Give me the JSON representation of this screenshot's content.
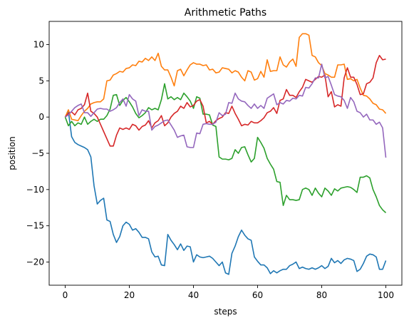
{
  "chart_data": {
    "type": "line",
    "title": "Arithmetic Paths",
    "xlabel": "steps",
    "ylabel": "position",
    "xlim": [
      -5,
      105
    ],
    "ylim": [
      -23.2,
      13.2
    ],
    "xticks": [
      0,
      20,
      40,
      60,
      80,
      100
    ],
    "yticks": [
      -20,
      -15,
      -10,
      -5,
      0,
      5,
      10
    ],
    "grid": false,
    "legend": "none",
    "series": [
      {
        "color": "#1f77b4",
        "x": [
          0,
          1,
          2,
          3,
          4,
          5,
          6,
          7,
          8,
          9,
          10,
          11,
          12,
          13,
          14,
          15,
          16,
          17,
          18,
          19,
          20,
          21,
          22,
          23,
          24,
          25,
          26,
          27,
          28,
          29,
          30,
          31,
          32,
          33,
          34,
          35,
          36,
          37,
          38,
          39,
          40,
          41,
          42,
          43,
          44,
          45,
          46,
          47,
          48,
          49,
          50,
          51,
          52,
          53,
          54,
          55,
          56,
          57,
          58,
          59,
          60,
          61,
          62,
          63,
          64,
          65,
          66,
          67,
          68,
          69,
          70,
          71,
          72,
          73,
          74,
          75,
          76,
          77,
          78,
          79,
          80,
          81,
          82,
          83,
          84,
          85,
          86,
          87,
          88,
          89,
          90,
          91,
          92,
          93,
          94,
          95,
          96,
          97,
          98,
          99,
          100
        ],
        "y": [
          0,
          0.8,
          -2.7,
          -3.5,
          -3.8,
          -4,
          -4.2,
          -4.5,
          -5.5,
          -9.5,
          -12,
          -11.5,
          -11.2,
          -14.2,
          -14.4,
          -16.2,
          -17.3,
          -16.5,
          -15,
          -14.5,
          -14.8,
          -15.6,
          -15.4,
          -15.9,
          -16.6,
          -16.6,
          -16.8,
          -18.6,
          -19.3,
          -19.2,
          -20.4,
          -20.5,
          -16.2,
          -17,
          -17.6,
          -18.3,
          -17.5,
          -18.4,
          -17.8,
          -17.9,
          -20,
          -19,
          -19.3,
          -19.4,
          -19.3,
          -19.2,
          -19.5,
          -20,
          -20.5,
          -20,
          -21.5,
          -21.7,
          -18.8,
          -17.8,
          -16.5,
          -15.6,
          -16.3,
          -16.8,
          -17,
          -19.3,
          -19.9,
          -20.4,
          -20.4,
          -20.8,
          -21.6,
          -21.2,
          -21.5,
          -21.2,
          -21,
          -21,
          -20.5,
          -20.3,
          -20,
          -20.9,
          -20.7,
          -20.9,
          -21,
          -20.8,
          -21,
          -20.8,
          -20.5,
          -20.9,
          -20.6,
          -19.5,
          -20.1,
          -19.8,
          -20.2,
          -19.7,
          -19.5,
          -19.6,
          -19.8,
          -21.3,
          -21,
          -20.2,
          -19.2,
          -18.9,
          -19,
          -19.3,
          -21,
          -21,
          -19.8
        ]
      },
      {
        "color": "#ff7f0e",
        "x": [
          0,
          1,
          2,
          3,
          4,
          5,
          6,
          7,
          8,
          9,
          10,
          11,
          12,
          13,
          14,
          15,
          16,
          17,
          18,
          19,
          20,
          21,
          22,
          23,
          24,
          25,
          26,
          27,
          28,
          29,
          30,
          31,
          32,
          33,
          34,
          35,
          36,
          37,
          38,
          39,
          40,
          41,
          42,
          43,
          44,
          45,
          46,
          47,
          48,
          49,
          50,
          51,
          52,
          53,
          54,
          55,
          56,
          57,
          58,
          59,
          60,
          61,
          62,
          63,
          64,
          65,
          66,
          67,
          68,
          69,
          70,
          71,
          72,
          73,
          74,
          75,
          76,
          77,
          78,
          79,
          80,
          81,
          82,
          83,
          84,
          85,
          86,
          87,
          88,
          89,
          90,
          91,
          92,
          93,
          94,
          95,
          96,
          97,
          98,
          99,
          100
        ],
        "y": [
          0,
          1,
          -0.3,
          -0.4,
          -0.5,
          0.2,
          0.8,
          1.2,
          1.8,
          2,
          2.1,
          2.1,
          2.5,
          5,
          5.1,
          5.8,
          6,
          6.3,
          6.2,
          6.7,
          6.8,
          7.2,
          7.1,
          7.7,
          7.6,
          8.1,
          7.8,
          8.3,
          7.8,
          8.8,
          7,
          6.5,
          6.5,
          5.5,
          4.3,
          6.4,
          6.6,
          5.7,
          6.5,
          7.2,
          7.5,
          7.3,
          7.3,
          7.1,
          7.2,
          6.5,
          6.6,
          6.1,
          6.2,
          6.8,
          6.7,
          6.6,
          6.1,
          6.4,
          6.2,
          5.5,
          5,
          6.4,
          6.2,
          5.1,
          5.3,
          6.3,
          5.5,
          7.9,
          6.3,
          6.4,
          6.4,
          8.3,
          7.2,
          6.9,
          7.6,
          8,
          7,
          11,
          11.5,
          11.5,
          11.3,
          8.5,
          8.3,
          7.5,
          7.1,
          6,
          5.8,
          5.5,
          5.5,
          7.2,
          7.2,
          7.3,
          5.2,
          5.3,
          5,
          5.2,
          4,
          3,
          2.9,
          2.5,
          1.9,
          1.7,
          1.1,
          1,
          0.5
        ]
      },
      {
        "color": "#2ca02c",
        "x": [
          0,
          1,
          2,
          3,
          4,
          5,
          6,
          7,
          8,
          9,
          10,
          11,
          12,
          13,
          14,
          15,
          16,
          17,
          18,
          19,
          20,
          21,
          22,
          23,
          24,
          25,
          26,
          27,
          28,
          29,
          30,
          31,
          32,
          33,
          34,
          35,
          36,
          37,
          38,
          39,
          40,
          41,
          42,
          43,
          44,
          45,
          46,
          47,
          48,
          49,
          50,
          51,
          52,
          53,
          54,
          55,
          56,
          57,
          58,
          59,
          60,
          61,
          62,
          63,
          64,
          65,
          66,
          67,
          68,
          69,
          70,
          71,
          72,
          73,
          74,
          75,
          76,
          77,
          78,
          79,
          80,
          81,
          82,
          83,
          84,
          85,
          86,
          87,
          88,
          89,
          90,
          91,
          92,
          93,
          94,
          95,
          96,
          97,
          98,
          99,
          100
        ],
        "y": [
          0,
          -1.2,
          -0.6,
          -1.2,
          -0.8,
          -1,
          0,
          -1,
          -0.6,
          -0.3,
          -0.6,
          -0.3,
          -0.3,
          0.2,
          1.1,
          3,
          3.1,
          1.6,
          2.3,
          2.7,
          2.1,
          1.4,
          0.5,
          -0.1,
          0.2,
          0.6,
          1.3,
          1,
          1.2,
          1,
          2.4,
          4.6,
          2.5,
          2.8,
          2.4,
          2.7,
          2.4,
          3.3,
          2.8,
          2.2,
          1.2,
          2.8,
          2.6,
          0.4,
          0.4,
          0.3,
          -1.1,
          -1.3,
          -5.5,
          -5.8,
          -5.8,
          -5.9,
          -5.7,
          -4.5,
          -5,
          -4.2,
          -4.1,
          -5.2,
          -6.2,
          -5.7,
          -2.8,
          -3.5,
          -4.3,
          -5.7,
          -6.5,
          -7.2,
          -8.9,
          -9,
          -12.2,
          -10.8,
          -11.4,
          -11.4,
          -11.5,
          -11.4,
          -10,
          -9.8,
          -10,
          -10.8,
          -9.8,
          -10.5,
          -11,
          -9.8,
          -10.2,
          -10.8,
          -9.9,
          -10.2,
          -9.8,
          -9.7,
          -9.6,
          -9.7,
          -10,
          -10.4,
          -8.3,
          -8.3,
          -8.1,
          -8.4,
          -10,
          -11,
          -12.2,
          -12.8,
          -13.2
        ]
      },
      {
        "color": "#d62728",
        "x": [
          0,
          1,
          2,
          3,
          4,
          5,
          6,
          7,
          8,
          9,
          10,
          11,
          12,
          13,
          14,
          15,
          16,
          17,
          18,
          19,
          20,
          21,
          22,
          23,
          24,
          25,
          26,
          27,
          28,
          29,
          30,
          31,
          32,
          33,
          34,
          35,
          36,
          37,
          38,
          39,
          40,
          41,
          42,
          43,
          44,
          45,
          46,
          47,
          48,
          49,
          50,
          51,
          52,
          53,
          54,
          55,
          56,
          57,
          58,
          59,
          60,
          61,
          62,
          63,
          64,
          65,
          66,
          67,
          68,
          69,
          70,
          71,
          72,
          73,
          74,
          75,
          76,
          77,
          78,
          79,
          80,
          81,
          82,
          83,
          84,
          85,
          86,
          87,
          88,
          89,
          90,
          91,
          92,
          93,
          94,
          95,
          96,
          97,
          98,
          99,
          100
        ],
        "y": [
          0,
          0.5,
          0.7,
          0.3,
          1,
          1.2,
          1.7,
          3.3,
          0.8,
          0.5,
          0,
          -1,
          -2,
          -3,
          -4,
          -4,
          -2.5,
          -1.5,
          -1.7,
          -1.5,
          -1.7,
          -1,
          -1.2,
          -1.8,
          -1.3,
          -1.1,
          -0.5,
          -1.5,
          -0.8,
          -0.5,
          0.2,
          -1.2,
          -0.8,
          0,
          0.5,
          0.8,
          1.5,
          1.2,
          2,
          1.4,
          1.6,
          2.2,
          2.4,
          1.5,
          -0.8,
          -0.6,
          -1,
          -0.5,
          -0.2,
          0,
          0.6,
          0.5,
          1.5,
          0.5,
          -0.3,
          -1.2,
          -1,
          -1.1,
          -0.6,
          -0.8,
          -0.8,
          -0.5,
          -0.1,
          0.6,
          0.8,
          1.3,
          0.5,
          2.3,
          2.5,
          3.8,
          3,
          3,
          2.7,
          3.5,
          4.1,
          5.2,
          5,
          4.8,
          5.2,
          5.6,
          5.5,
          5.8,
          2.8,
          3.5,
          1.4,
          1.7,
          1.5,
          5.4,
          6.8,
          5.5,
          5.5,
          4.5,
          3.1,
          3.2,
          4.6,
          4.8,
          5.4,
          7.5,
          8.5,
          7.9,
          8
        ]
      },
      {
        "color": "#9467bd",
        "x": [
          0,
          1,
          2,
          3,
          4,
          5,
          6,
          7,
          8,
          9,
          10,
          11,
          12,
          13,
          14,
          15,
          16,
          17,
          18,
          19,
          20,
          21,
          22,
          23,
          24,
          25,
          26,
          27,
          28,
          29,
          30,
          31,
          32,
          33,
          34,
          35,
          36,
          37,
          38,
          39,
          40,
          41,
          42,
          43,
          44,
          45,
          46,
          47,
          48,
          49,
          50,
          51,
          52,
          53,
          54,
          55,
          56,
          57,
          58,
          59,
          60,
          61,
          62,
          63,
          64,
          65,
          66,
          67,
          68,
          69,
          70,
          71,
          72,
          73,
          74,
          75,
          76,
          77,
          78,
          79,
          80,
          81,
          82,
          83,
          84,
          85,
          86,
          87,
          88,
          89,
          90,
          91,
          92,
          93,
          94,
          95,
          96,
          97,
          98,
          99,
          100
        ],
        "y": [
          0,
          0.3,
          0.8,
          1.3,
          1.6,
          1.8,
          0.6,
          0.6,
          0.1,
          0.6,
          1.1,
          1.2,
          1.1,
          1.1,
          0.8,
          1,
          1.3,
          2,
          2.5,
          1.5,
          3.1,
          2.5,
          2.2,
          0.2,
          1,
          0.8,
          0.8,
          -1.8,
          -1.3,
          -1.1,
          -0.8,
          -0.5,
          -0.4,
          -1.1,
          -1.8,
          -2.8,
          -2.6,
          -2.5,
          -4.1,
          -4.2,
          -4.2,
          -2.2,
          -2.3,
          -1,
          -0.9,
          -1,
          -1,
          -0.7,
          0.6,
          0.2,
          0.4,
          2,
          1.9,
          3.3,
          2.5,
          2.2,
          2.1,
          1.6,
          1.2,
          1.8,
          1.2,
          1.6,
          1.2,
          2.6,
          2.9,
          3.2,
          1.7,
          2,
          1.8,
          2.3,
          2.2,
          2.6,
          2.5,
          3,
          2.9,
          4.1,
          4,
          4.6,
          5.4,
          5.4,
          7.3,
          5.4,
          5.6,
          4.4,
          3.1,
          2.9,
          2.8,
          2.3,
          1.2,
          2.7,
          2.1,
          0.8,
          0.6,
          0,
          0.4,
          -0.4,
          -0.4,
          -1,
          -0.7,
          -1.5,
          -5.6
        ]
      }
    ]
  }
}
